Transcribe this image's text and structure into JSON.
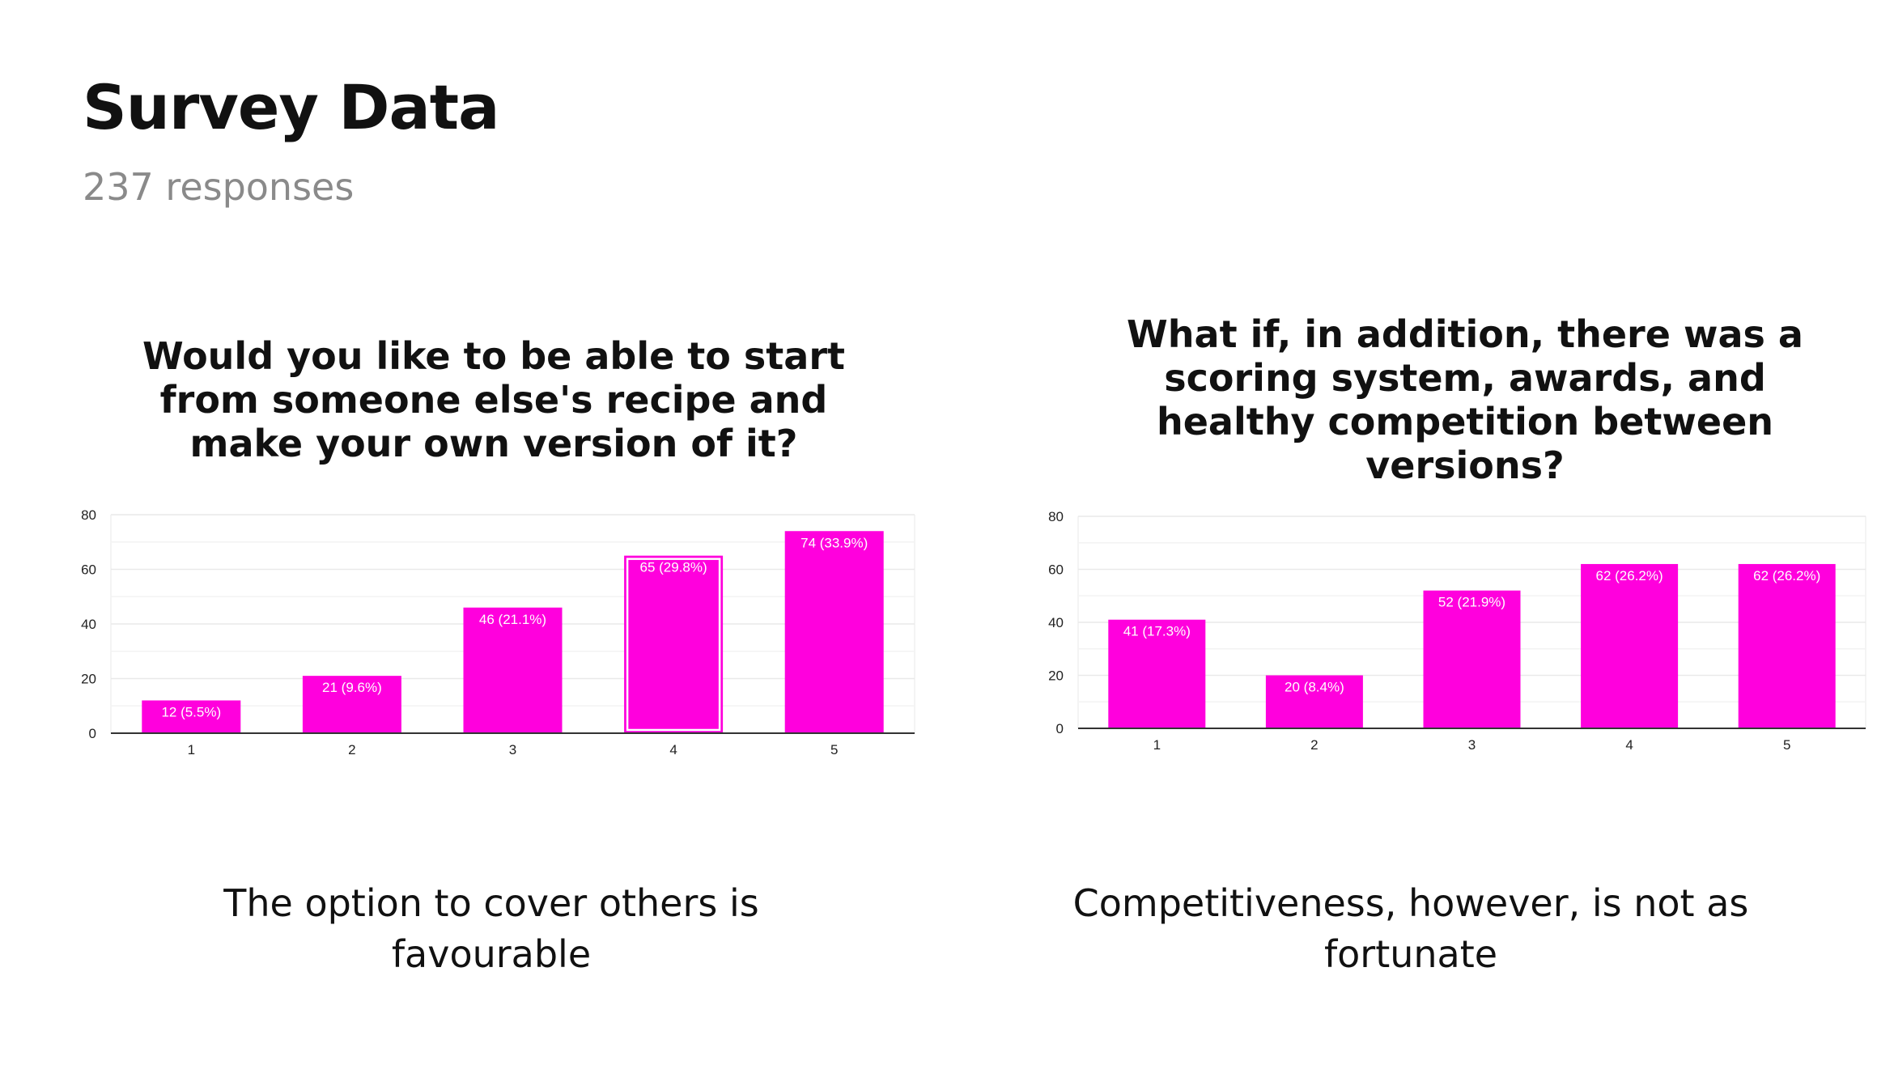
{
  "header": {
    "title": "Survey Data",
    "subtitle": "237 responses"
  },
  "colors": {
    "bar": "#ff00dd",
    "grid": "#e9e9e9",
    "axis": "#333333"
  },
  "charts": [
    {
      "question": "Would you like to be able to start from someone else's recipe and make your own version of it?",
      "caption": "The option to cover others is favourable"
    },
    {
      "question": "What if, in addition, there was a scoring system, awards, and healthy competition between versions?",
      "caption": "Competitiveness, however, is not as fortunate"
    }
  ],
  "chart_data": [
    {
      "type": "bar",
      "title": "Would you like to be able to start from someone else's recipe and make your own version of it?",
      "categories": [
        "1",
        "2",
        "3",
        "4",
        "5"
      ],
      "values": [
        12,
        21,
        46,
        65,
        74
      ],
      "data_labels": [
        "12 (5.5%)",
        "21 (9.6%)",
        "46 (21.1%)",
        "65 (29.8%)",
        "74 (33.9%)"
      ],
      "highlighted_index": 3,
      "yticks": [
        0,
        20,
        40,
        60,
        80
      ],
      "ylim": [
        0,
        80
      ],
      "grid": true,
      "xlabel": "",
      "ylabel": ""
    },
    {
      "type": "bar",
      "title": "What if, in addition, there was a scoring system, awards, and healthy competition between versions?",
      "categories": [
        "1",
        "2",
        "3",
        "4",
        "5"
      ],
      "values": [
        41,
        20,
        52,
        62,
        62
      ],
      "data_labels": [
        "41 (17.3%)",
        "20 (8.4%)",
        "52 (21.9%)",
        "62 (26.2%)",
        "62 (26.2%)"
      ],
      "yticks": [
        0,
        20,
        40,
        60,
        80
      ],
      "ylim": [
        0,
        80
      ],
      "grid": true,
      "xlabel": "",
      "ylabel": ""
    }
  ]
}
